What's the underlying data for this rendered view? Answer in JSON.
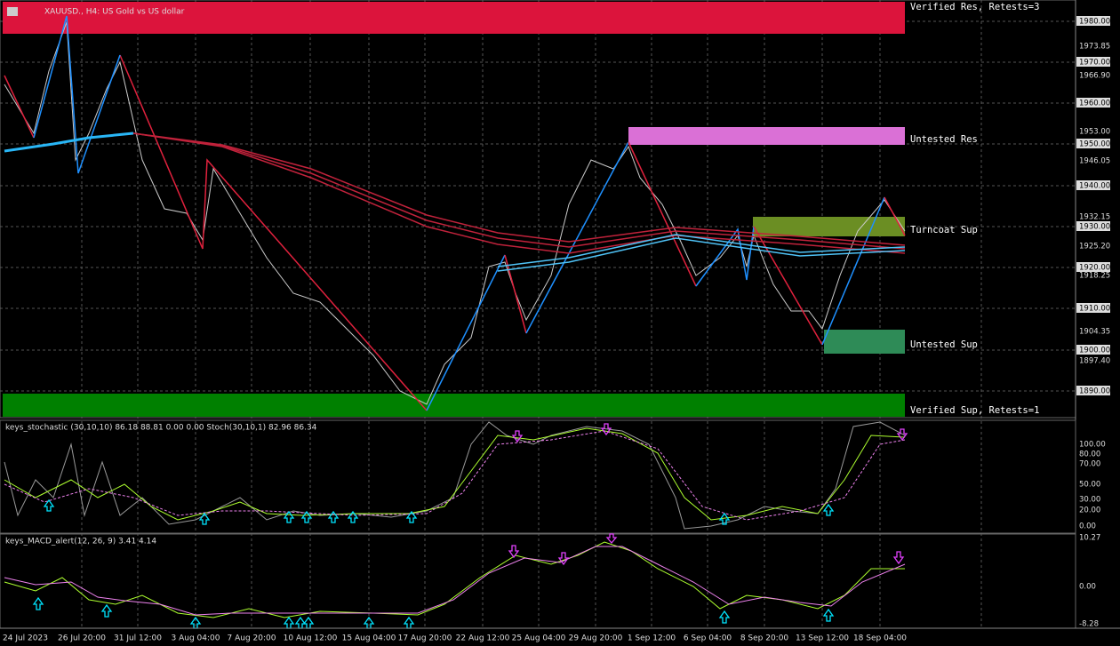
{
  "header": {
    "title": "XAUUSD., H4: US Gold vs US dollar"
  },
  "zones": [
    {
      "label": "Verified Res, Retests=3"
    },
    {
      "label": "Untested Res"
    },
    {
      "label": "Turncoat Sup"
    },
    {
      "label": "Untested Sup"
    },
    {
      "label": "Verified Sup, Retests=1"
    }
  ],
  "price_axis": [
    "1980.00",
    "1973.85",
    "1970.00",
    "1966.90",
    "1960.00",
    "1953.00",
    "1950.00",
    "1946.05",
    "1940.00",
    "1932.15",
    "1930.00",
    "1925.20",
    "1920.00",
    "1918.25",
    "1910.00",
    "1904.35",
    "1900.00",
    "1897.40",
    "1890.00"
  ],
  "stoch": {
    "header": "keys_stochastic (30,10,10) 86.18 88.81 0.00 0.00 Stoch(30,10,1) 82.96 86.34",
    "axis": [
      "100.00",
      "80.00",
      "70.00",
      "50.00",
      "30.00",
      "20.00",
      "0.00"
    ]
  },
  "macd": {
    "header": "keys_MACD_alert(12, 26, 9) 3.41 4.14",
    "axis": [
      "10.27",
      "0.00",
      "-8.28"
    ]
  },
  "time_axis": [
    "24 Jul 2023",
    "26 Jul 20:00",
    "31 Jul 12:00",
    "3 Aug 04:00",
    "7 Aug 20:00",
    "10 Aug 12:00",
    "15 Aug 04:00",
    "17 Aug 20:00",
    "22 Aug 12:00",
    "25 Aug 04:00",
    "29 Aug 20:00",
    "1 Sep 12:00",
    "6 Sep 04:00",
    "8 Sep 20:00",
    "13 Sep 12:00",
    "18 Sep 04:00"
  ]
}
